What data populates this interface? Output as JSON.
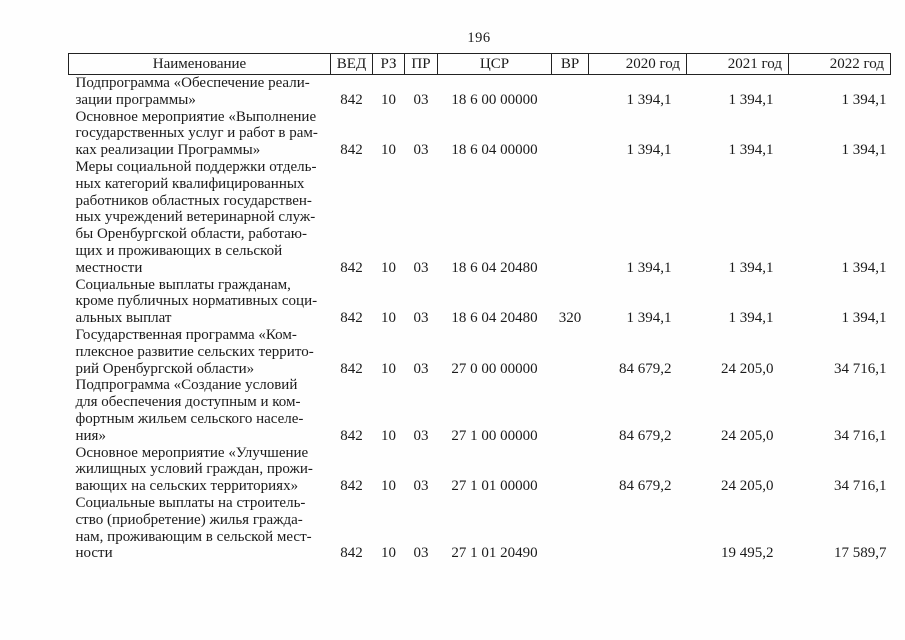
{
  "page": {
    "number": "196"
  },
  "colors": {
    "text": "#1b1b1b",
    "border": "#222222",
    "background": "#fefefe"
  },
  "table": {
    "columns": [
      {
        "key": "name",
        "label": "Наименование"
      },
      {
        "key": "ved",
        "label": "ВЕД"
      },
      {
        "key": "rz",
        "label": "РЗ"
      },
      {
        "key": "pr",
        "label": "ПР"
      },
      {
        "key": "csr",
        "label": "ЦСР"
      },
      {
        "key": "vr",
        "label": "ВР"
      },
      {
        "key": "y2020",
        "label": "2020 год"
      },
      {
        "key": "y2021",
        "label": "2021 год"
      },
      {
        "key": "y2022",
        "label": "2022 год"
      }
    ],
    "rows": [
      {
        "name_lines": [
          "Подпрограмма «Обеспечение реали-",
          "зации программы»"
        ],
        "ved": "842",
        "rz": "10",
        "pr": "03",
        "csr": "18 6 00 00000",
        "vr": "",
        "y2020": "1 394,1",
        "y2021": "1 394,1",
        "y2022": "1 394,1"
      },
      {
        "name_lines": [
          "Основное мероприятие «Выполнение",
          "государственных услуг и работ в рам-",
          "ках реализации Программы»"
        ],
        "ved": "842",
        "rz": "10",
        "pr": "03",
        "csr": "18 6 04 00000",
        "vr": "",
        "y2020": "1 394,1",
        "y2021": "1 394,1",
        "y2022": "1 394,1"
      },
      {
        "name_lines": [
          "Меры социальной поддержки отдель-",
          "ных категорий квалифицированных",
          "работников областных государствен-",
          "ных учреждений ветеринарной служ-",
          "бы Оренбургской области, работаю-",
          "щих и проживающих в сельской",
          "местности"
        ],
        "ved": "842",
        "rz": "10",
        "pr": "03",
        "csr": "18 6 04 20480",
        "vr": "",
        "y2020": "1 394,1",
        "y2021": "1 394,1",
        "y2022": "1 394,1"
      },
      {
        "name_lines": [
          "Социальные выплаты гражданам,",
          "кроме публичных нормативных соци-",
          "альных выплат"
        ],
        "ved": "842",
        "rz": "10",
        "pr": "03",
        "csr": "18 6 04 20480",
        "vr": "320",
        "y2020": "1 394,1",
        "y2021": "1 394,1",
        "y2022": "1 394,1"
      },
      {
        "name_lines": [
          "Государственная программа «Ком-",
          "плексное развитие сельских террито-",
          "рий Оренбургской области»"
        ],
        "ved": "842",
        "rz": "10",
        "pr": "03",
        "csr": "27 0 00 00000",
        "vr": "",
        "y2020": "84 679,2",
        "y2021": "24 205,0",
        "y2022": "34 716,1"
      },
      {
        "name_lines": [
          "Подпрограмма «Создание условий",
          "для обеспечения доступным и ком-",
          "фортным жильем сельского населе-",
          "ния»"
        ],
        "ved": "842",
        "rz": "10",
        "pr": "03",
        "csr": "27 1 00 00000",
        "vr": "",
        "y2020": "84 679,2",
        "y2021": "24 205,0",
        "y2022": "34 716,1"
      },
      {
        "name_lines": [
          "Основное мероприятие «Улучшение",
          "жилищных условий граждан, прожи-",
          "вающих на сельских территориях»"
        ],
        "ved": "842",
        "rz": "10",
        "pr": "03",
        "csr": "27 1 01 00000",
        "vr": "",
        "y2020": "84 679,2",
        "y2021": "24 205,0",
        "y2022": "34 716,1"
      },
      {
        "name_lines": [
          "Социальные выплаты на строитель-",
          "ство (приобретение) жилья гражда-",
          "нам, проживающим в сельской мест-",
          "ности"
        ],
        "ved": "842",
        "rz": "10",
        "pr": "03",
        "csr": "27 1 01 20490",
        "vr": "",
        "y2020": "",
        "y2021": "19 495,2",
        "y2022": "17 589,7"
      }
    ]
  }
}
